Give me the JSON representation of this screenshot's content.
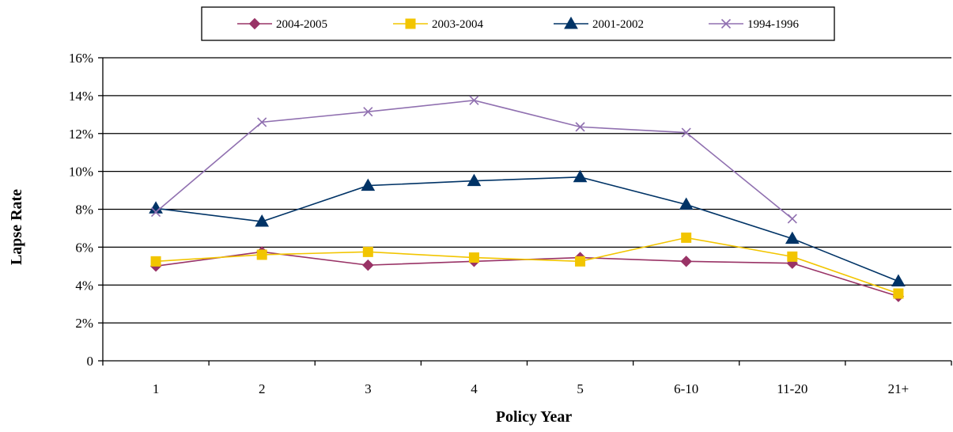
{
  "chart_data": {
    "type": "line",
    "categories": [
      "1",
      "2",
      "3",
      "4",
      "5",
      "6-10",
      "11-20",
      "21+"
    ],
    "xlabel": "Policy Year",
    "ylabel": "Lapse Rate",
    "ylim": [
      0,
      16
    ],
    "yticks": [
      0,
      2,
      4,
      6,
      8,
      10,
      12,
      14,
      16
    ],
    "ytick_labels": [
      "0",
      "2%",
      "4%",
      "6%",
      "8%",
      "10%",
      "12%",
      "14%",
      "16%"
    ],
    "grid": true,
    "legend_position": "top",
    "series": [
      {
        "name": "2004-2005",
        "color": "#993366",
        "marker": "diamond",
        "values": [
          5.0,
          5.75,
          5.05,
          5.25,
          5.45,
          5.25,
          5.15,
          3.4
        ]
      },
      {
        "name": "2003-2004",
        "color": "#f2c500",
        "marker": "square",
        "values": [
          5.25,
          5.6,
          5.75,
          5.45,
          5.25,
          6.5,
          5.5,
          3.55
        ]
      },
      {
        "name": "2001-2002",
        "color": "#003366",
        "marker": "triangle",
        "values": [
          8.05,
          7.35,
          9.25,
          9.5,
          9.7,
          8.25,
          6.45,
          4.2
        ]
      },
      {
        "name": "1994-1996",
        "color": "#9070b0",
        "marker": "x",
        "values": [
          7.85,
          12.6,
          13.15,
          13.75,
          12.35,
          12.05,
          7.5,
          null
        ]
      }
    ]
  }
}
